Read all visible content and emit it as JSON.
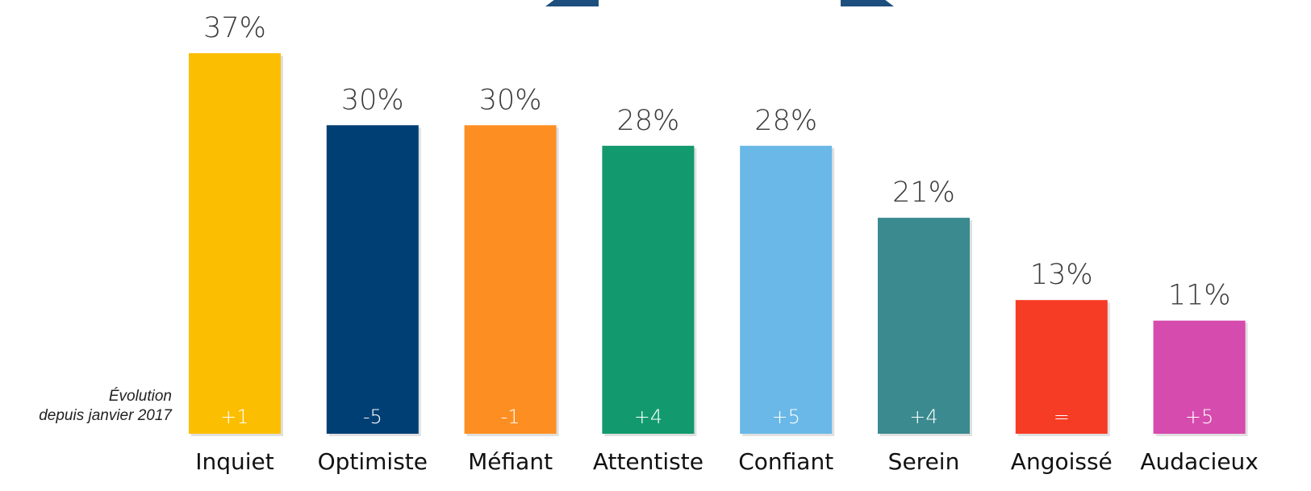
{
  "chart_data": {
    "type": "bar",
    "categories": [
      "Inquiet",
      "Optimiste",
      "Méfiant",
      "Attentiste",
      "Confiant",
      "Serein",
      "Angoissé",
      "Audacieux"
    ],
    "values": [
      37,
      30,
      30,
      28,
      28,
      21,
      13,
      11
    ],
    "value_labels": [
      "37%",
      "30%",
      "30%",
      "28%",
      "28%",
      "21%",
      "13%",
      "11%"
    ],
    "evolution_labels": [
      "+1",
      "-5",
      "-1",
      "+4",
      "+5",
      "+4",
      "=",
      "+5"
    ],
    "colors": [
      "#FCBE00",
      "#003F74",
      "#FD8F22",
      "#12996E",
      "#69B8E7",
      "#3A8A8F",
      "#F63C25",
      "#D64BAE"
    ],
    "evolution_text_colors": [
      "#ffffff",
      "#ffffff",
      "#ffffff",
      "#ffffff",
      "#ffffff",
      "#ffffff",
      "#ffffff",
      "#ffffff"
    ],
    "ylim": [
      0,
      40
    ],
    "grid": false,
    "legend": "none"
  },
  "annotation": {
    "line1": "Évolution",
    "line2": "depuis janvier 2017"
  },
  "decor": {
    "top_shapes_color": "#1D4F7E"
  }
}
